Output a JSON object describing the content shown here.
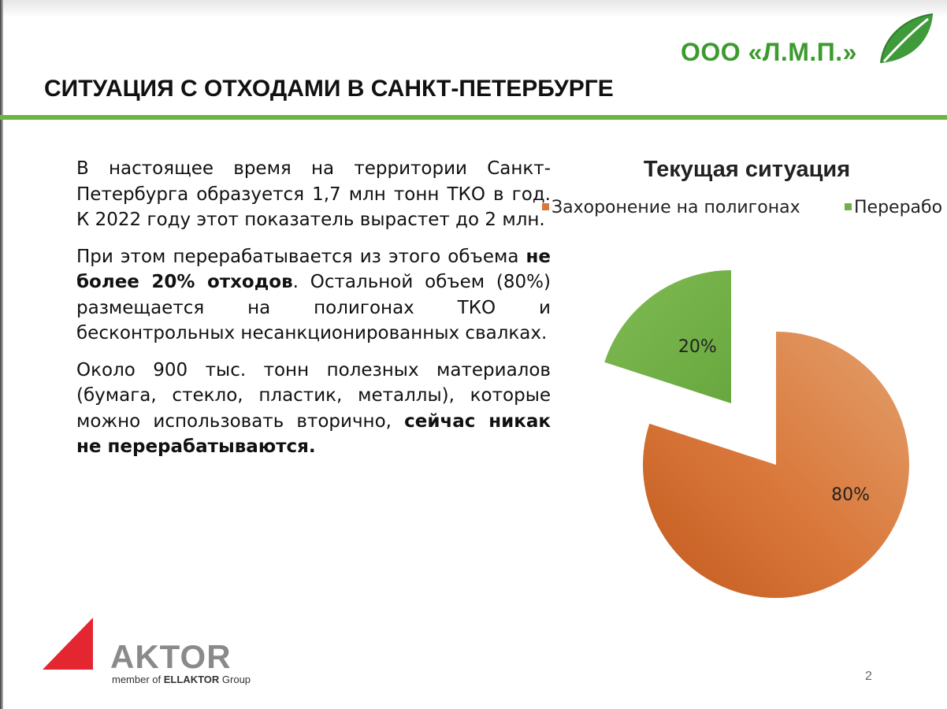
{
  "header": {
    "company": "ООО «Л.М.П.»",
    "title": "СИТУАЦИЯ С ОТХОДАМИ В САНКТ-ПЕТЕРБУРГЕ"
  },
  "body": {
    "p1": "В настоящее время на территории Санкт-Петербурга образуется  1,7 млн тонн ТКО в год. К 2022 году этот показатель вырастет до 2 млн.",
    "p2_a": "При этом перерабатывается из этого объема ",
    "p2_b": "не более 20% отходов",
    "p2_c": ". Остальной объем (80%) размещается на полигонах ТКО и бесконтрольных несанкционированных свалках.",
    "p3_a": "Около 900 тыс. тонн полезных материалов (бумага, стекло, пластик, металлы), которые можно использовать вторично, ",
    "p3_b": "сейчас никак не перерабатываются."
  },
  "chart_data": {
    "type": "pie",
    "title": "Текущая ситуация",
    "legend_position": "top",
    "series": [
      {
        "name": "Захоронение на полигонах",
        "value": 80,
        "label": "80%",
        "color": "#d9773a"
      },
      {
        "name": "Переработка",
        "value": 20,
        "label": "20%",
        "color": "#72b047"
      }
    ],
    "legend_visible": [
      "Захоронение на полигонах",
      "Перерабо"
    ]
  },
  "footer": {
    "logo_word": "AKTOR",
    "logo_sub_a": "member of ",
    "logo_sub_b": "ELLAKTOR",
    "logo_sub_c": " Group",
    "page_number": "2"
  },
  "colors": {
    "accent_green": "#6cb543",
    "brand_green": "#3d9a2f",
    "slice_orange": "#d9773a",
    "slice_green": "#72b047",
    "logo_red": "#e3262f"
  }
}
